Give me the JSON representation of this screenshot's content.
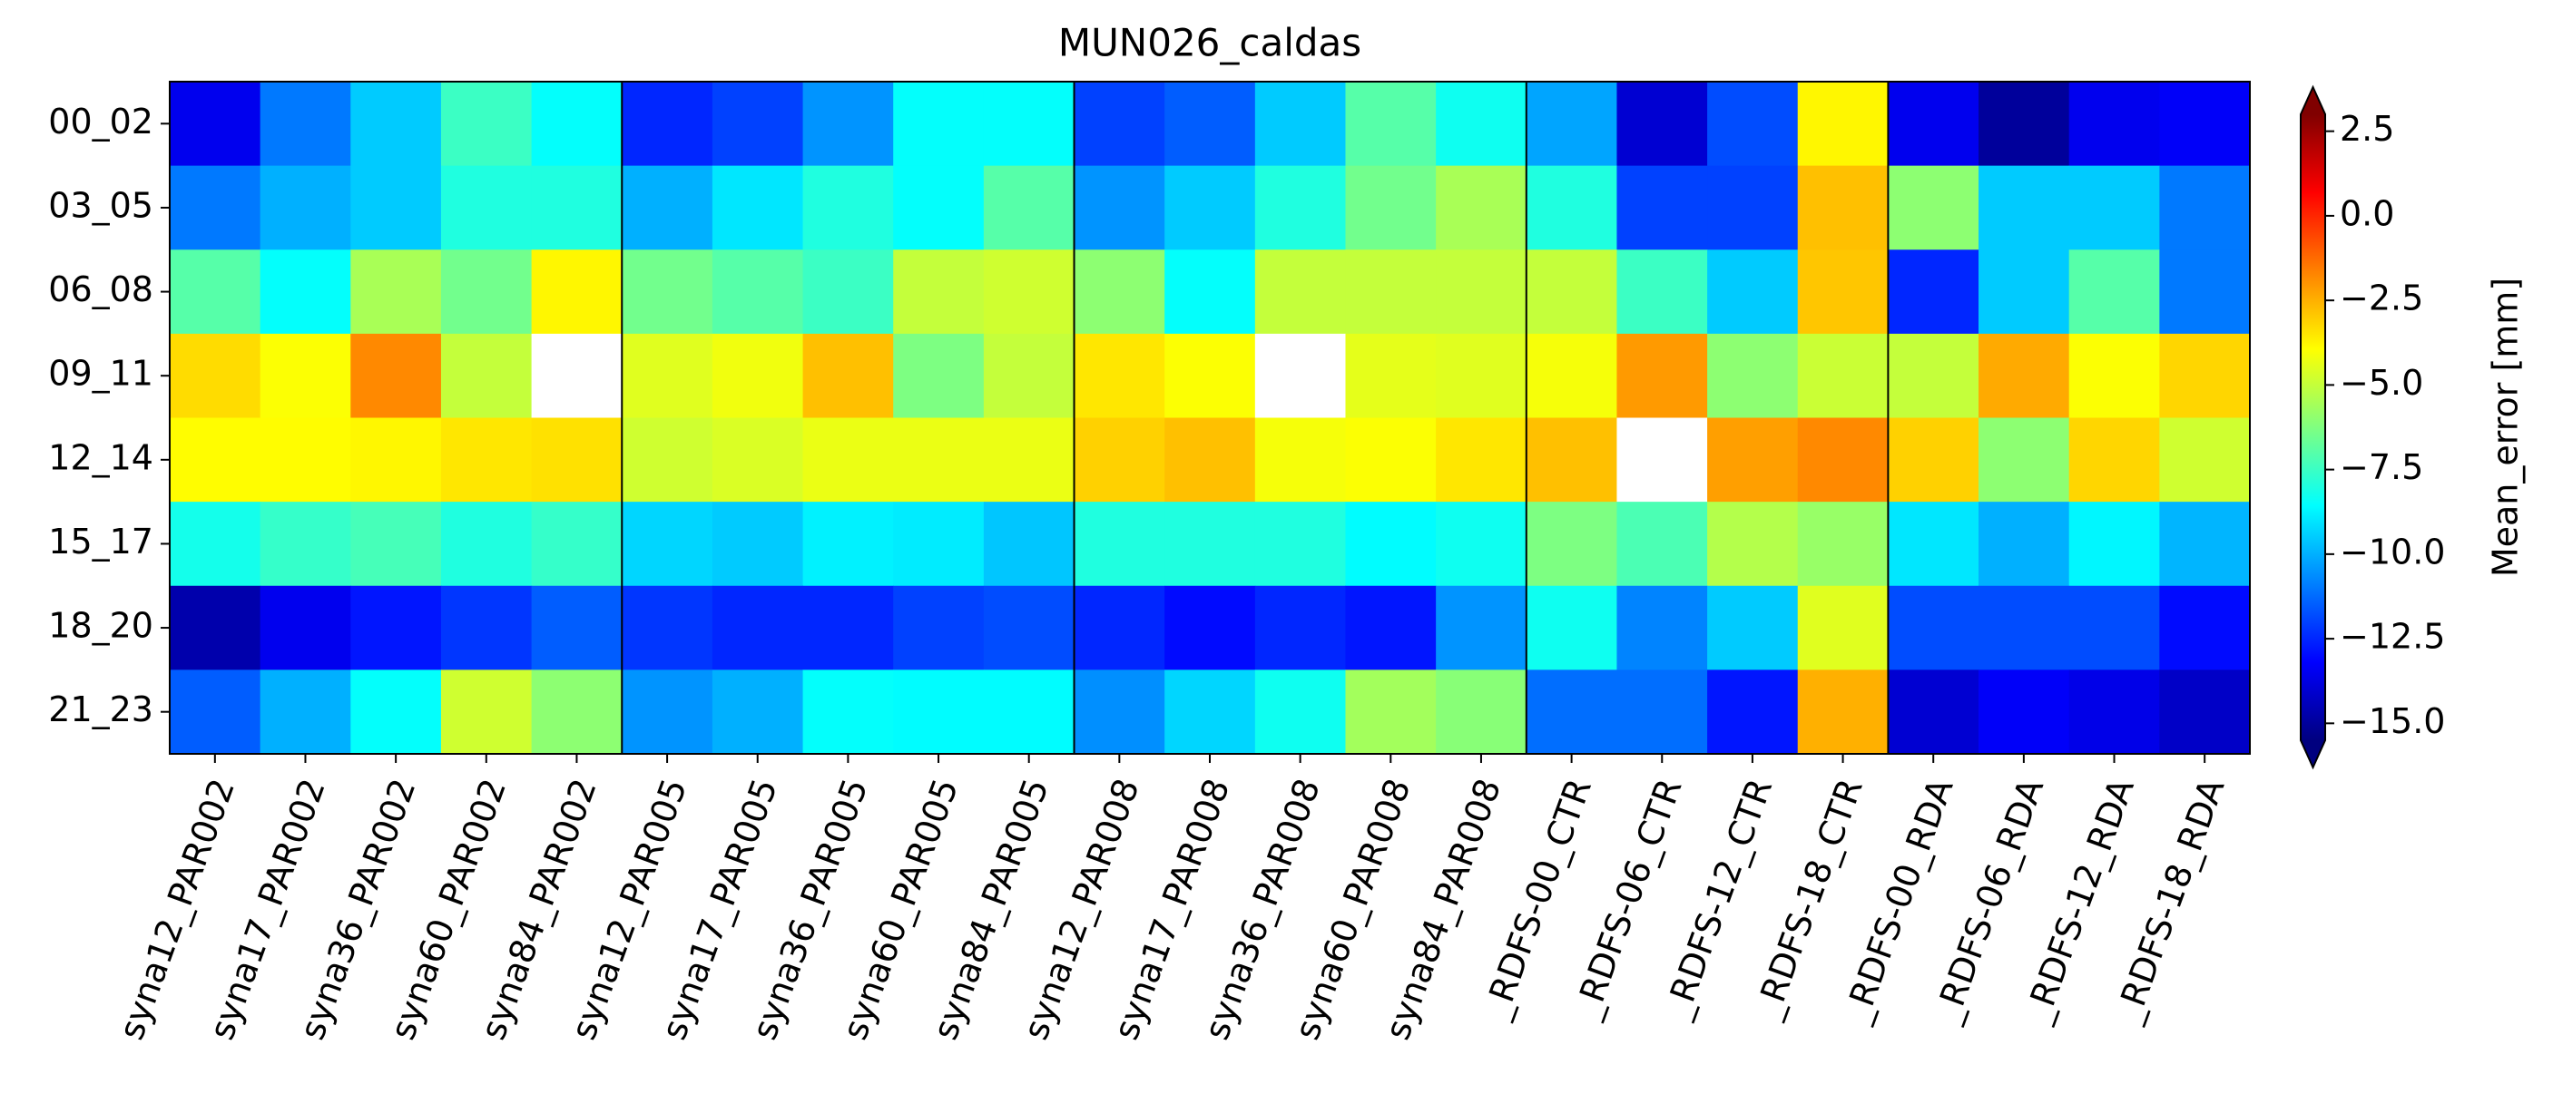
{
  "chart_data": {
    "type": "heatmap",
    "title": "MUN026_caldas",
    "x_categories": [
      "syna12_PAR002",
      "syna17_PAR002",
      "syna36_PAR002",
      "syna60_PAR002",
      "syna84_PAR002",
      "syna12_PAR005",
      "syna17_PAR005",
      "syna36_PAR005",
      "syna60_PAR005",
      "syna84_PAR005",
      "syna12_PAR008",
      "syna17_PAR008",
      "syna36_PAR008",
      "syna60_PAR008",
      "syna84_PAR008",
      "_RDFS-00_CTR",
      "_RDFS-06_CTR",
      "_RDFS-12_CTR",
      "_RDFS-18_CTR",
      "_RDFS-00_RDA",
      "_RDFS-06_RDA",
      "_RDFS-12_RDA",
      "_RDFS-18_RDA"
    ],
    "y_categories": [
      "00_02",
      "03_05",
      "06_08",
      "09_11",
      "12_14",
      "15_17",
      "18_20",
      "21_23"
    ],
    "values": [
      [
        -13.5,
        -11,
        -9.5,
        -7.5,
        -8.5,
        -12.5,
        -12,
        -10.5,
        -8.5,
        -8.5,
        -12,
        -11.5,
        -9.5,
        -7,
        -8.3,
        -10.2,
        -14,
        -11.8,
        -3.8,
        -13.5,
        -15,
        -13.5,
        -13.3
      ],
      [
        -11,
        -10,
        -9.5,
        -8,
        -8,
        -10,
        -9,
        -8,
        -8.5,
        -7,
        -10.5,
        -9.5,
        -8,
        -6.5,
        -5.5,
        -8,
        -12,
        -12,
        -2.8,
        -6,
        -9.5,
        -9.5,
        -11
      ],
      [
        -7,
        -8.5,
        -5.5,
        -6.5,
        -3.8,
        -6.5,
        -7,
        -7.5,
        -5,
        -4.8,
        -6,
        -8.5,
        -5,
        -5,
        -5,
        -5,
        -7.5,
        -9.5,
        -2.9,
        -12.5,
        -9.5,
        -7,
        -11
      ],
      [
        -3.3,
        -4,
        -1.8,
        -5,
        null,
        -4.5,
        -4.2,
        -2.8,
        -6.3,
        -5,
        -3.5,
        -4,
        null,
        -4.4,
        -4.5,
        -4.1,
        -2.1,
        -6,
        -4.9,
        -5,
        -2.4,
        -4,
        -3.2
      ],
      [
        -3.9,
        -3.9,
        -3.8,
        -3.5,
        -3.4,
        -4.8,
        -4.6,
        -4.3,
        -4.3,
        -4.3,
        -3.1,
        -2.8,
        -4.1,
        -4,
        -3.5,
        -2.8,
        null,
        -2.2,
        -1.8,
        -3.1,
        -6,
        -3.2,
        -4.8
      ],
      [
        -8.2,
        -7.6,
        -7.3,
        -8,
        -7.6,
        -9.3,
        -9.5,
        -8.8,
        -8.9,
        -9.6,
        -8,
        -8,
        -8,
        -8.6,
        -8.3,
        -6.3,
        -7.2,
        -5.3,
        -5.8,
        -9,
        -10,
        -8.7,
        -9.9
      ],
      [
        -14.7,
        -13.5,
        -12.8,
        -12.2,
        -11.5,
        -12.2,
        -12.5,
        -12.5,
        -12,
        -11.8,
        -12.5,
        -13,
        -12.5,
        -12.8,
        -10.5,
        -8.3,
        -10.8,
        -9.5,
        -4.5,
        -11.8,
        -11.8,
        -11.8,
        -13
      ],
      [
        -11.5,
        -10,
        -8.5,
        -4.8,
        -6,
        -10.5,
        -10,
        -8.5,
        -8.6,
        -8.6,
        -10.6,
        -9.3,
        -8.3,
        -5.6,
        -6.1,
        -11.2,
        -11.2,
        -12.8,
        -2.5,
        -14,
        -13.3,
        -13.6,
        -14.2
      ]
    ],
    "colormap": "jet",
    "clim": [
      -15.5,
      3
    ],
    "colorbar_label": "Mean_error [mm]",
    "colorbar_ticks": [
      {
        "value": -15,
        "label": "−15.0"
      },
      {
        "value": -12.5,
        "label": "−12.5"
      },
      {
        "value": -10,
        "label": "−10.0"
      },
      {
        "value": -7.5,
        "label": "−7.5"
      },
      {
        "value": -5,
        "label": "−5.0"
      },
      {
        "value": -2.5,
        "label": "−2.5"
      },
      {
        "value": 0,
        "label": "0.0"
      },
      {
        "value": 2.5,
        "label": "2.5"
      }
    ]
  }
}
